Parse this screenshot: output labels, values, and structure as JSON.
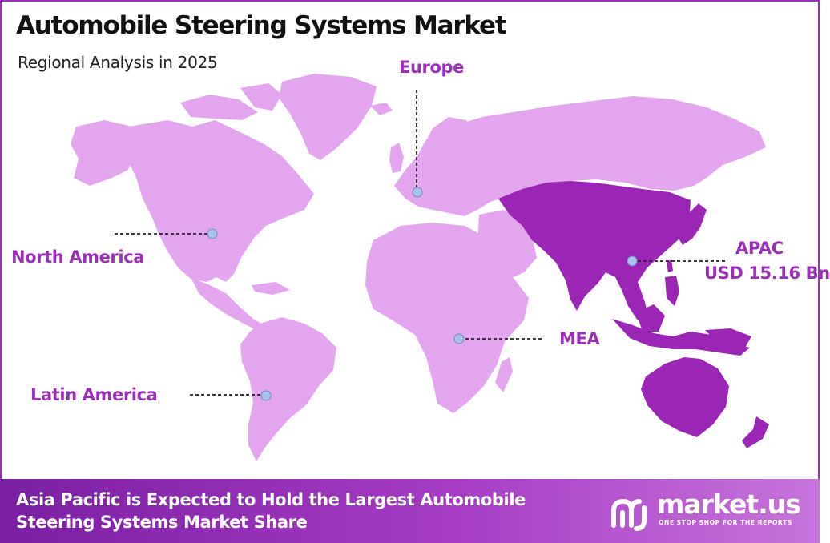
{
  "title": "Automobile Steering Systems Market",
  "subtitle": "Regional Analysis in 2025",
  "colors": {
    "land": "#e3a6ee",
    "highlight": "#9b25b4",
    "marker": "#a8c2ec",
    "label": "#9b30b8",
    "footer": "#8a2aad"
  },
  "regions": {
    "north_america": {
      "label": "North America"
    },
    "europe": {
      "label": "Europe"
    },
    "apac": {
      "label": "APAC",
      "value": "USD 15.16 Bn",
      "highlighted": true
    },
    "mea": {
      "label": "MEA"
    },
    "latin_america": {
      "label": "Latin America"
    }
  },
  "footer": {
    "text": "Asia Pacific is Expected to Hold the Largest Automobile Steering Systems Market Share"
  },
  "logo": {
    "name": "market.us",
    "tagline": "ONE STOP SHOP FOR THE REPORTS"
  }
}
